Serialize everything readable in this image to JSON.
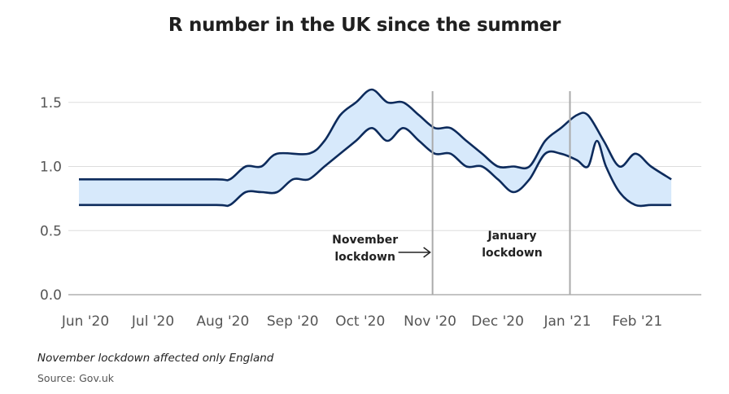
{
  "title": "R number in the UK since the summer",
  "footnote": "November lockdown affected only England",
  "source": "Source: Gov.uk",
  "colors": {
    "band_fill": "#d7e9fb",
    "band_stroke": "#0d2b5c",
    "marker_line": "#aaaaaa",
    "grid": "#dddddd"
  },
  "chart_data": {
    "type": "area",
    "x_labels": [
      "Jun '20",
      "Jul '20",
      "Aug '20",
      "Sep '20",
      "Oct '20",
      "Nov '20",
      "Dec '20",
      "Jan '21",
      "Feb '21"
    ],
    "x_range": [
      "2020-06-01",
      "2021-02-28"
    ],
    "ylim": [
      0,
      1.6
    ],
    "yticks": [
      "0.0",
      "0.5",
      "1.0",
      "1.5"
    ],
    "grid": "horizontal",
    "series": [
      {
        "name": "upper",
        "points": [
          [
            "2020-06-01",
            0.9
          ],
          [
            "2020-07-01",
            0.9
          ],
          [
            "2020-08-01",
            0.9
          ],
          [
            "2020-08-07",
            0.9
          ],
          [
            "2020-08-14",
            1.0
          ],
          [
            "2020-08-21",
            1.0
          ],
          [
            "2020-08-28",
            1.1
          ],
          [
            "2020-09-11",
            1.1
          ],
          [
            "2020-09-18",
            1.2
          ],
          [
            "2020-09-25",
            1.4
          ],
          [
            "2020-10-02",
            1.5
          ],
          [
            "2020-10-09",
            1.6
          ],
          [
            "2020-10-16",
            1.5
          ],
          [
            "2020-10-23",
            1.5
          ],
          [
            "2020-10-30",
            1.4
          ],
          [
            "2020-11-06",
            1.3
          ],
          [
            "2020-11-13",
            1.3
          ],
          [
            "2020-11-20",
            1.2
          ],
          [
            "2020-11-27",
            1.1
          ],
          [
            "2020-12-04",
            1.0
          ],
          [
            "2020-12-11",
            1.0
          ],
          [
            "2020-12-18",
            1.0
          ],
          [
            "2020-12-25",
            1.2
          ],
          [
            "2021-01-01",
            1.3
          ],
          [
            "2021-01-08",
            1.4
          ],
          [
            "2021-01-13",
            1.4
          ],
          [
            "2021-01-20",
            1.2
          ],
          [
            "2021-01-27",
            1.0
          ],
          [
            "2021-02-03",
            1.1
          ],
          [
            "2021-02-10",
            1.0
          ],
          [
            "2021-02-19",
            0.9
          ]
        ]
      },
      {
        "name": "lower",
        "points": [
          [
            "2020-06-01",
            0.7
          ],
          [
            "2020-07-01",
            0.7
          ],
          [
            "2020-08-01",
            0.7
          ],
          [
            "2020-08-07",
            0.7
          ],
          [
            "2020-08-14",
            0.8
          ],
          [
            "2020-08-21",
            0.8
          ],
          [
            "2020-08-28",
            0.8
          ],
          [
            "2020-09-04",
            0.9
          ],
          [
            "2020-09-11",
            0.9
          ],
          [
            "2020-09-18",
            1.0
          ],
          [
            "2020-09-25",
            1.1
          ],
          [
            "2020-10-02",
            1.2
          ],
          [
            "2020-10-09",
            1.3
          ],
          [
            "2020-10-16",
            1.2
          ],
          [
            "2020-10-23",
            1.3
          ],
          [
            "2020-10-30",
            1.2
          ],
          [
            "2020-11-06",
            1.1
          ],
          [
            "2020-11-13",
            1.1
          ],
          [
            "2020-11-20",
            1.0
          ],
          [
            "2020-11-27",
            1.0
          ],
          [
            "2020-12-04",
            0.9
          ],
          [
            "2020-12-11",
            0.8
          ],
          [
            "2020-12-18",
            0.9
          ],
          [
            "2020-12-25",
            1.1
          ],
          [
            "2021-01-01",
            1.1
          ],
          [
            "2021-01-08",
            1.05
          ],
          [
            "2021-01-13",
            1.0
          ],
          [
            "2021-01-17",
            1.2
          ],
          [
            "2021-01-21",
            1.0
          ],
          [
            "2021-01-27",
            0.8
          ],
          [
            "2021-02-03",
            0.7
          ],
          [
            "2021-02-10",
            0.7
          ],
          [
            "2021-02-19",
            0.7
          ]
        ]
      }
    ],
    "markers": [
      {
        "date": "2020-11-05",
        "label_lines": [
          "November",
          "lockdown"
        ],
        "arrow": true
      },
      {
        "date": "2021-01-05",
        "label_lines": [
          "January",
          "lockdown"
        ],
        "arrow": false
      }
    ]
  }
}
